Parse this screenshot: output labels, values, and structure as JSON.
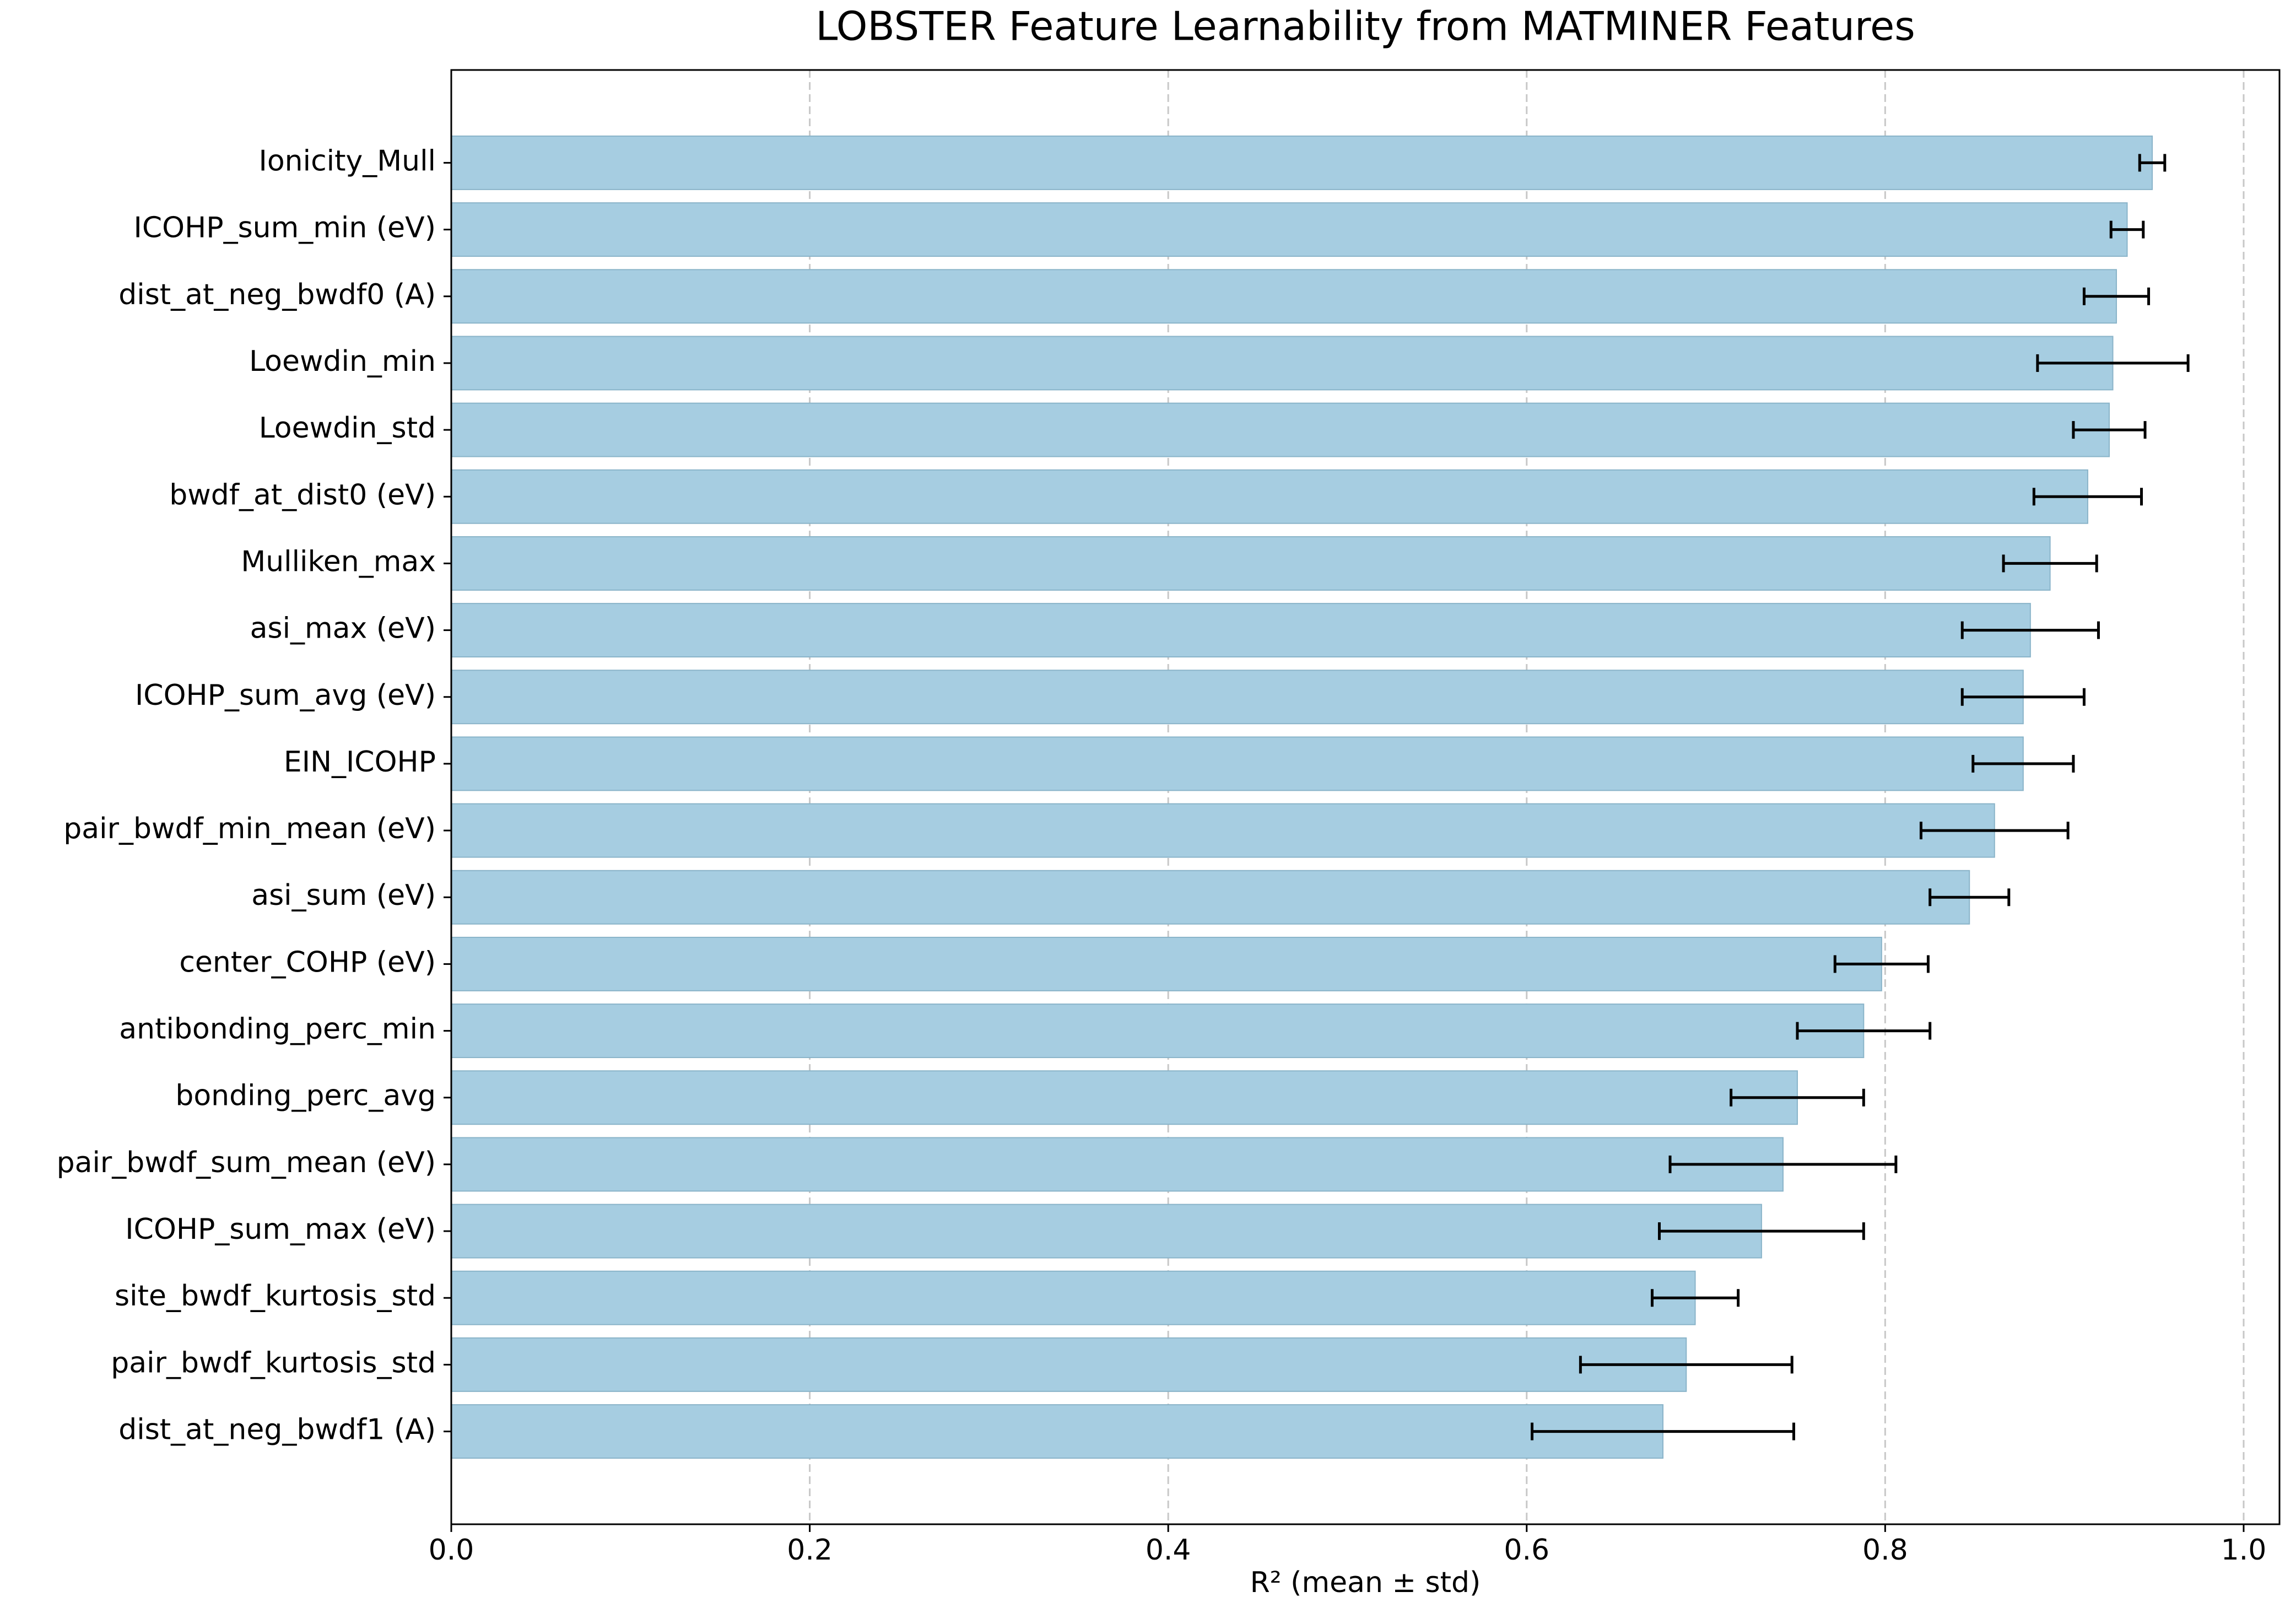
{
  "chart_data": {
    "type": "barh",
    "title": "LOBSTER Feature Learnability from MATMINER Features",
    "x_label": "R² (mean ± std)",
    "categories": [
      "Ionicity_Mull",
      "ICOHP_sum_min (eV)",
      "dist_at_neg_bwdf0 (A)",
      "Loewdin_min",
      "Loewdin_std",
      "bwdf_at_dist0 (eV)",
      "Mulliken_max",
      "asi_max (eV)",
      "ICOHP_sum_avg (eV)",
      "EIN_ICOHP",
      "pair_bwdf_min_mean (eV)",
      "asi_sum (eV)",
      "center_COHP (eV)",
      "antibonding_perc_min",
      "bonding_perc_avg",
      "pair_bwdf_sum_mean (eV)",
      "ICOHP_sum_max (eV)",
      "site_bwdf_kurtosis_std",
      "pair_bwdf_kurtosis_std",
      "dist_at_neg_bwdf1 (A)"
    ],
    "values": [
      0.949,
      0.935,
      0.929,
      0.927,
      0.925,
      0.913,
      0.892,
      0.881,
      0.877,
      0.877,
      0.861,
      0.847,
      0.798,
      0.788,
      0.751,
      0.743,
      0.731,
      0.694,
      0.689,
      0.676
    ],
    "errors": [
      0.007,
      0.009,
      0.018,
      0.042,
      0.02,
      0.03,
      0.026,
      0.038,
      0.034,
      0.028,
      0.041,
      0.022,
      0.026,
      0.037,
      0.037,
      0.063,
      0.057,
      0.024,
      0.059,
      0.073
    ],
    "color": "#a6cde1",
    "edgecolor": "#8ab4c9",
    "error_color": "#000000",
    "xlim": [
      0,
      1.02
    ],
    "xticks": [
      {
        "value": 0,
        "label": "0.0"
      },
      0.2,
      0.4,
      0.6,
      0.8,
      {
        "value": 1,
        "label": "1.0"
      }
    ],
    "grid": true
  }
}
